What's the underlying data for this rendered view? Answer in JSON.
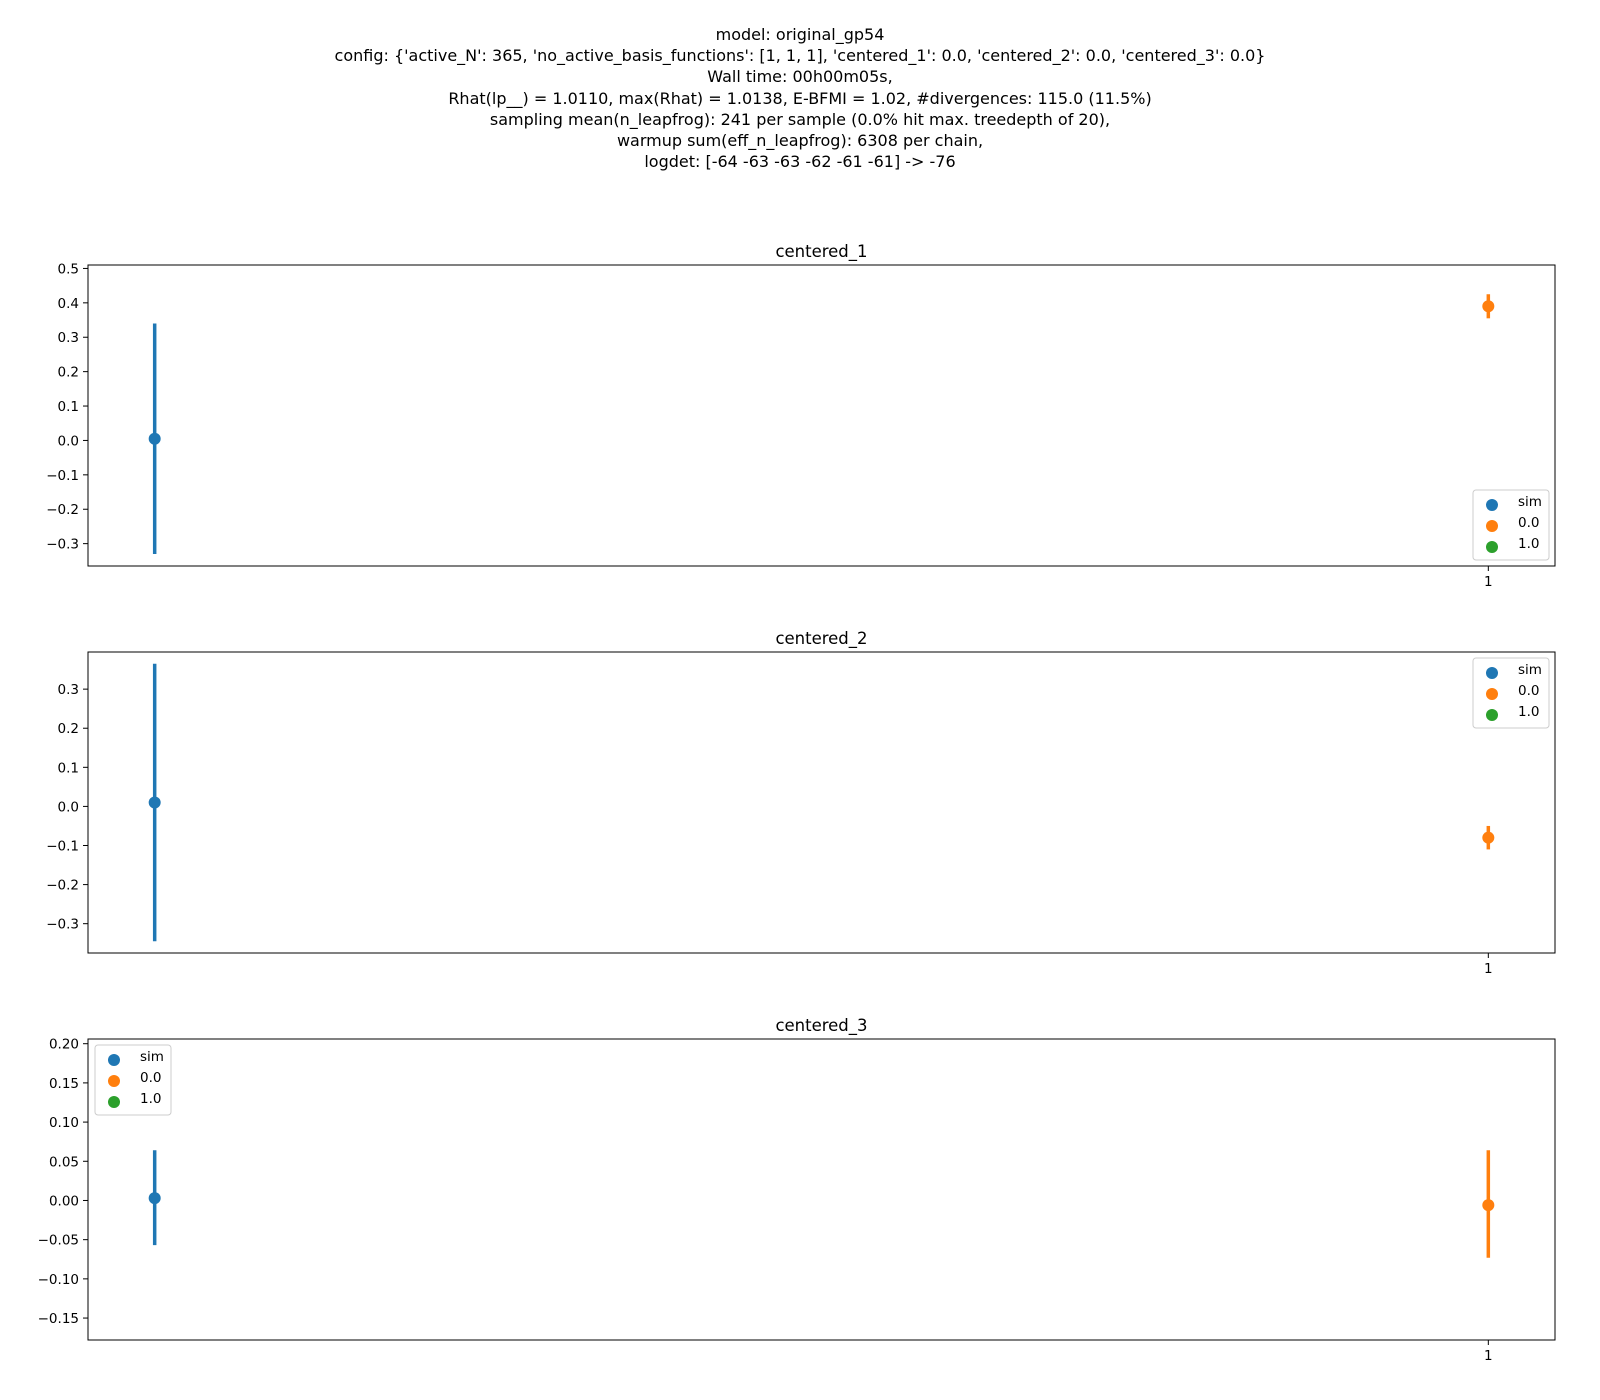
{
  "suptitle_lines": [
    "model: original_gp54",
    "config: {'active_N': 365, 'no_active_basis_functions': [1, 1, 1], 'centered_1': 0.0, 'centered_2': 0.0, 'centered_3': 0.0}",
    "Wall time: 00h00m05s,",
    "Rhat(lp__) = 1.0110, max(Rhat) = 1.0138, E-BFMI = 1.02, #divergences: 115.0 (11.5%)",
    "sampling mean(n_leapfrog): 241 per sample (0.0% hit max. treedepth of 20),",
    "warmup sum(eff_n_leapfrog): 6308 per chain,",
    "logdet: [-64 -63 -63 -62 -61 -61] -> -76"
  ],
  "colors": {
    "sim": "#1f77b4",
    "0.0": "#ff7f0e",
    "1.0": "#2ca02c"
  },
  "chart_data": [
    {
      "type": "scatter",
      "title": "centered_1",
      "legend_position": "lower right",
      "legend": [
        "sim",
        "0.0",
        "1.0"
      ],
      "xlim": [
        -0.05,
        1.05
      ],
      "ylim": [
        -0.365,
        0.51
      ],
      "yticks": [
        -0.3,
        -0.2,
        -0.1,
        0.0,
        0.1,
        0.2,
        0.3,
        0.4,
        0.5
      ],
      "ytick_labels": [
        "−0.3",
        "−0.2",
        "−0.1",
        "0.0",
        "0.1",
        "0.2",
        "0.3",
        "0.4",
        "0.5"
      ],
      "xticks": [
        1
      ],
      "xtick_labels": [
        "1"
      ],
      "series": [
        {
          "name": "sim",
          "x": [
            0
          ],
          "y": [
            0.005
          ],
          "lower": [
            -0.33
          ],
          "upper": [
            0.34
          ]
        },
        {
          "name": "0.0",
          "x": [
            1
          ],
          "y": [
            0.39
          ],
          "lower": [
            0.355
          ],
          "upper": [
            0.425
          ]
        },
        {
          "name": "1.0",
          "x": [],
          "y": [],
          "lower": [],
          "upper": []
        }
      ]
    },
    {
      "type": "scatter",
      "title": "centered_2",
      "legend_position": "upper right",
      "legend": [
        "sim",
        "0.0",
        "1.0"
      ],
      "xlim": [
        -0.05,
        1.05
      ],
      "ylim": [
        -0.375,
        0.395
      ],
      "yticks": [
        -0.3,
        -0.2,
        -0.1,
        0.0,
        0.1,
        0.2,
        0.3
      ],
      "ytick_labels": [
        "−0.3",
        "−0.2",
        "−0.1",
        "0.0",
        "0.1",
        "0.2",
        "0.3"
      ],
      "xticks": [
        1
      ],
      "xtick_labels": [
        "1"
      ],
      "series": [
        {
          "name": "sim",
          "x": [
            0
          ],
          "y": [
            0.01
          ],
          "lower": [
            -0.345
          ],
          "upper": [
            0.365
          ]
        },
        {
          "name": "0.0",
          "x": [
            1
          ],
          "y": [
            -0.08
          ],
          "lower": [
            -0.11
          ],
          "upper": [
            -0.05
          ]
        },
        {
          "name": "1.0",
          "x": [],
          "y": [],
          "lower": [],
          "upper": []
        }
      ]
    },
    {
      "type": "scatter",
      "title": "centered_3",
      "legend_position": "upper left",
      "legend": [
        "sim",
        "0.0",
        "1.0"
      ],
      "xlim": [
        -0.05,
        1.05
      ],
      "ylim": [
        -0.178,
        0.206
      ],
      "yticks": [
        -0.15,
        -0.1,
        -0.05,
        0.0,
        0.05,
        0.1,
        0.15,
        0.2
      ],
      "ytick_labels": [
        "−0.15",
        "−0.10",
        "−0.05",
        "0.00",
        "0.05",
        "0.10",
        "0.15",
        "0.20"
      ],
      "xticks": [
        1
      ],
      "xtick_labels": [
        "1"
      ],
      "series": [
        {
          "name": "sim",
          "x": [
            0
          ],
          "y": [
            0.003
          ],
          "lower": [
            -0.057
          ],
          "upper": [
            0.064
          ]
        },
        {
          "name": "0.0",
          "x": [
            1
          ],
          "y": [
            -0.006
          ],
          "lower": [
            -0.073
          ],
          "upper": [
            0.064
          ]
        },
        {
          "name": "1.0",
          "x": [],
          "y": [],
          "lower": [],
          "upper": []
        }
      ]
    }
  ]
}
